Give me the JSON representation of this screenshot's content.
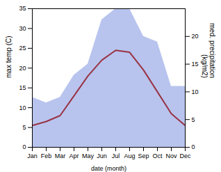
{
  "chart_data": {
    "type": "line",
    "categories": [
      "Jan",
      "Feb",
      "Mar",
      "Apr",
      "May",
      "Jun",
      "Jul",
      "Aug",
      "Sep",
      "Oct",
      "Nov",
      "Dec"
    ],
    "xlabel": "date (month)",
    "ylabel": "max temp (C)",
    "y2label": "med. precipitation\n(kg/m2)",
    "ylim": [
      0,
      35
    ],
    "yticks": [
      0,
      5,
      10,
      15,
      20,
      25,
      30,
      35
    ],
    "y2lim": [
      0,
      25
    ],
    "y2ticks": [
      0,
      5,
      10,
      15,
      20
    ],
    "grid": false,
    "series": [
      {
        "type": "area",
        "axis": "y2",
        "color": "#b8c4ee",
        "values": [
          9,
          8,
          9,
          13,
          15,
          23,
          25,
          25,
          20,
          19,
          11,
          11
        ]
      },
      {
        "type": "line",
        "color": "#993344",
        "values": [
          5.5,
          6.5,
          8.0,
          13.0,
          18.0,
          22.0,
          24.5,
          24.0,
          19.5,
          14.0,
          8.5,
          5.5
        ]
      }
    ]
  }
}
